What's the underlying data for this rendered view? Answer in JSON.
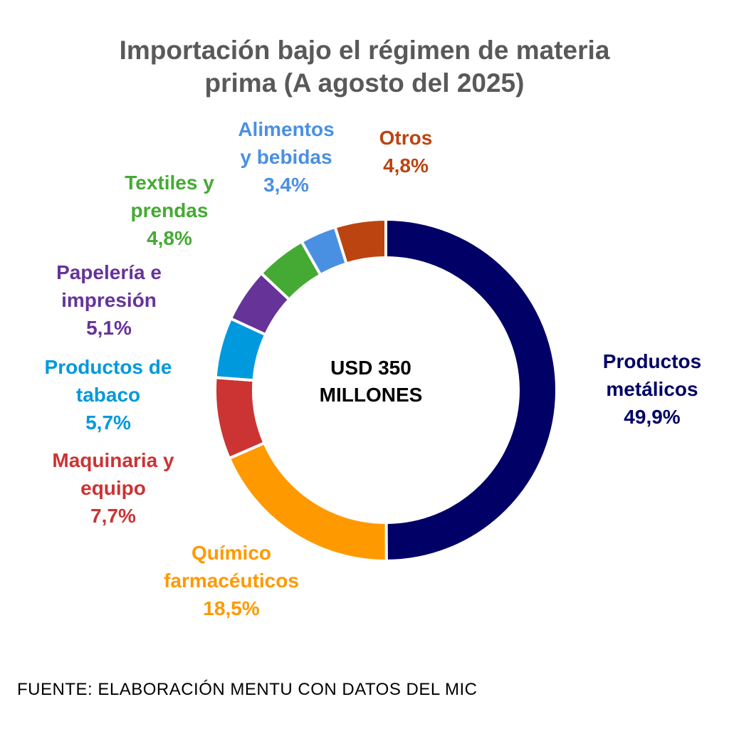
{
  "chart_data": {
    "type": "pie",
    "donut": true,
    "title_lines": [
      "Importación bajo el régimen de materia",
      "prima (A agosto del 2025)"
    ],
    "center_label_lines": [
      "USD 350",
      "MILLONES"
    ],
    "slices": [
      {
        "lines": [
          "Productos",
          "metálicos"
        ],
        "value_label": "49,9%",
        "value": 49.9,
        "color": "#000066"
      },
      {
        "lines": [
          "Químico",
          "farmacéuticos"
        ],
        "value_label": "18,5%",
        "value": 18.5,
        "color": "#FF9900"
      },
      {
        "lines": [
          "Maquinaria y",
          "equipo"
        ],
        "value_label": "7,7%",
        "value": 7.7,
        "color": "#CC3333"
      },
      {
        "lines": [
          "Productos de",
          "tabaco"
        ],
        "value_label": "5,7%",
        "value": 5.7,
        "color": "#0099DD"
      },
      {
        "lines": [
          "Papelería e",
          "impresión"
        ],
        "value_label": "5,1%",
        "value": 5.1,
        "color": "#663399"
      },
      {
        "lines": [
          "Textiles y",
          "prendas"
        ],
        "value_label": "4,8%",
        "value": 4.8,
        "color": "#44AA33"
      },
      {
        "lines": [
          "Alimentos",
          "y bebidas"
        ],
        "value_label": "3,4%",
        "value": 3.4,
        "color": "#4A90E2"
      },
      {
        "lines": [
          "Otros"
        ],
        "value_label": "4,8%",
        "value": 4.8,
        "color": "#BB4411"
      }
    ]
  },
  "source": "FUENTE: ELABORACIÓN MENTU CON DATOS DEL MIC"
}
